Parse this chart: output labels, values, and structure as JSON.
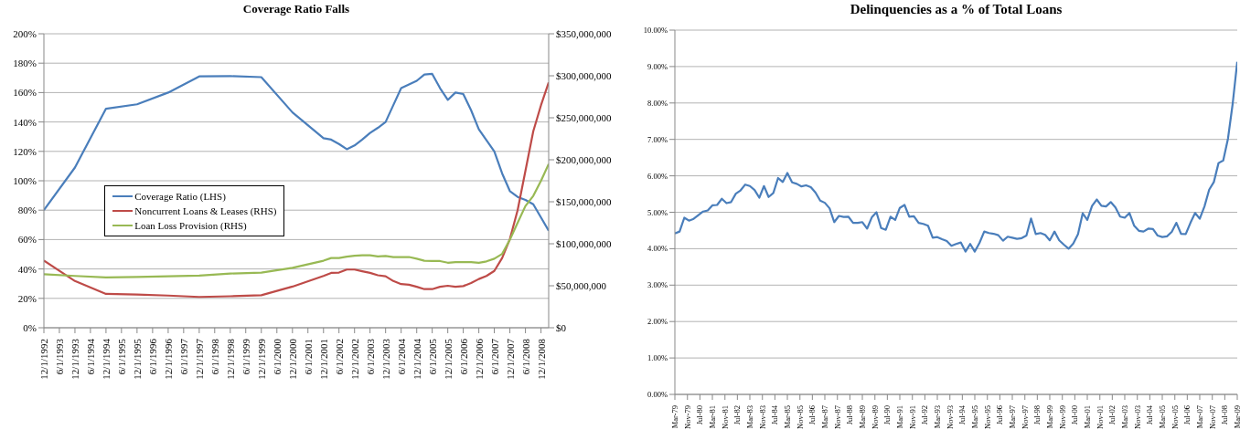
{
  "chart_data": [
    {
      "type": "line",
      "title": "Coverage Ratio Falls",
      "legend": "center left",
      "grid": "y",
      "marker": "none",
      "line_style": "solid",
      "x": [
        "1992-12",
        "1993-12",
        "1994-12",
        "1995-12",
        "1996-12",
        "1997-12",
        "1998-12",
        "1999-12",
        "2000-12",
        "2001-12",
        "2002-03",
        "2002-06",
        "2002-09",
        "2002-12",
        "2003-03",
        "2003-06",
        "2003-09",
        "2003-12",
        "2004-03",
        "2004-06",
        "2004-09",
        "2004-12",
        "2005-03",
        "2005-06",
        "2005-09",
        "2005-12",
        "2006-03",
        "2006-06",
        "2006-09",
        "2006-12",
        "2007-03",
        "2007-06",
        "2007-09",
        "2007-12",
        "2008-03",
        "2008-06",
        "2008-09",
        "2008-12",
        "2009-03"
      ],
      "xlim": [
        "1992-12-01",
        "2009-03-01"
      ],
      "xticks": [
        {
          "value": "1992-12-01",
          "label": "12/1/1992"
        },
        {
          "value": "1993-06-01",
          "label": "6/1/1993"
        },
        {
          "value": "1993-12-01",
          "label": "12/1/1993"
        },
        {
          "value": "1994-06-01",
          "label": "6/1/1994"
        },
        {
          "value": "1994-12-01",
          "label": "12/1/1994"
        },
        {
          "value": "1995-06-01",
          "label": "6/1/1995"
        },
        {
          "value": "1995-12-01",
          "label": "12/1/1995"
        },
        {
          "value": "1996-06-01",
          "label": "6/1/1996"
        },
        {
          "value": "1996-12-01",
          "label": "12/1/1996"
        },
        {
          "value": "1997-06-01",
          "label": "6/1/1997"
        },
        {
          "value": "1997-12-01",
          "label": "12/1/1997"
        },
        {
          "value": "1998-06-01",
          "label": "6/1/1998"
        },
        {
          "value": "1998-12-01",
          "label": "12/1/1998"
        },
        {
          "value": "1999-06-01",
          "label": "6/1/1999"
        },
        {
          "value": "1999-12-01",
          "label": "12/1/1999"
        },
        {
          "value": "2000-06-01",
          "label": "6/1/2000"
        },
        {
          "value": "2000-12-01",
          "label": "12/1/2000"
        },
        {
          "value": "2001-06-01",
          "label": "6/1/2001"
        },
        {
          "value": "2001-12-01",
          "label": "12/1/2001"
        },
        {
          "value": "2002-06-01",
          "label": "6/1/2002"
        },
        {
          "value": "2002-12-01",
          "label": "12/1/2002"
        },
        {
          "value": "2003-06-01",
          "label": "6/1/2003"
        },
        {
          "value": "2003-12-01",
          "label": "12/1/2003"
        },
        {
          "value": "2004-06-01",
          "label": "6/1/2004"
        },
        {
          "value": "2004-12-01",
          "label": "12/1/2004"
        },
        {
          "value": "2005-06-01",
          "label": "6/1/2005"
        },
        {
          "value": "2005-12-01",
          "label": "12/1/2005"
        },
        {
          "value": "2006-06-01",
          "label": "6/1/2006"
        },
        {
          "value": "2006-12-01",
          "label": "12/1/2006"
        },
        {
          "value": "2007-06-01",
          "label": "6/1/2007"
        },
        {
          "value": "2007-12-01",
          "label": "12/1/2007"
        },
        {
          "value": "2008-06-01",
          "label": "6/1/2008"
        },
        {
          "value": "2008-12-01",
          "label": "12/1/2008"
        }
      ],
      "ylim": [
        0,
        200
      ],
      "yticks": [
        {
          "value": 0,
          "label": "0%"
        },
        {
          "value": 20,
          "label": "20%"
        },
        {
          "value": 40,
          "label": "40%"
        },
        {
          "value": 60,
          "label": "60%"
        },
        {
          "value": 80,
          "label": "80%"
        },
        {
          "value": 100,
          "label": "100%"
        },
        {
          "value": 120,
          "label": "120%"
        },
        {
          "value": 140,
          "label": "140%"
        },
        {
          "value": 160,
          "label": "160%"
        },
        {
          "value": 180,
          "label": "180%"
        },
        {
          "value": 200,
          "label": "200%"
        }
      ],
      "y2lim": [
        0,
        350000000
      ],
      "y2ticks": [
        {
          "value": 0,
          "label": "$0"
        },
        {
          "value": 50000000,
          "label": "$50,000,000"
        },
        {
          "value": 100000000,
          "label": "$100,000,000"
        },
        {
          "value": 150000000,
          "label": "$150,000,000"
        },
        {
          "value": 200000000,
          "label": "$200,000,000"
        },
        {
          "value": 250000000,
          "label": "$250,000,000"
        },
        {
          "value": 300000000,
          "label": "$300,000,000"
        },
        {
          "value": 350000000,
          "label": "$350,000,000"
        }
      ],
      "series": [
        {
          "name": "Coverage Ratio (LHS)",
          "color": "#4a7ebb",
          "values": [
            80,
            109,
            149,
            152,
            160,
            171,
            171.2,
            170.5,
            146.5,
            129,
            128,
            125,
            121.5,
            124,
            128,
            132.5,
            136,
            140,
            151.5,
            163,
            165.5,
            168,
            172.3,
            172.7,
            163,
            155,
            160,
            159,
            148,
            135,
            127.5,
            120,
            105,
            93,
            89,
            87,
            84,
            75,
            66
          ]
        },
        {
          "name": "Noncurrent Loans & Leases (RHS)",
          "color": "#be4b48",
          "axis": "y2",
          "values": [
            80000000,
            55600000,
            40300000,
            39500000,
            38300000,
            36700000,
            37500000,
            38700000,
            49000000,
            61700000,
            65300000,
            65700000,
            69300000,
            69300000,
            67300000,
            65300000,
            62500000,
            61300000,
            55600000,
            52000000,
            51200000,
            48800000,
            46000000,
            46000000,
            48800000,
            50000000,
            48800000,
            49600000,
            53200000,
            58000000,
            61700000,
            67700000,
            83000000,
            105600000,
            140000000,
            187000000,
            234000000,
            265000000,
            292000000
          ]
        },
        {
          "name": "Loan Loss Provision (RHS)",
          "color": "#98b954",
          "axis": "y2",
          "values": [
            63700000,
            61700000,
            60000000,
            60400000,
            61300000,
            62000000,
            64500000,
            65700000,
            71300000,
            79800000,
            83000000,
            83000000,
            84600000,
            85800000,
            86200000,
            86200000,
            85000000,
            85400000,
            84200000,
            84200000,
            84200000,
            82200000,
            79800000,
            79400000,
            79400000,
            77400000,
            78200000,
            78200000,
            78200000,
            77400000,
            79000000,
            82200000,
            87900000,
            104800000,
            125000000,
            145000000,
            157000000,
            175000000,
            195000000
          ]
        }
      ]
    },
    {
      "type": "line",
      "title": "Delinquencies as a % of Total Loans",
      "legend": false,
      "grid": "y",
      "marker": "none",
      "line_style": "solid",
      "x": [
        "1979-03",
        "1979-06",
        "1979-09",
        "1979-12",
        "1980-03",
        "1980-06",
        "1980-09",
        "1980-12",
        "1981-03",
        "1981-06",
        "1981-09",
        "1981-12",
        "1982-03",
        "1982-06",
        "1982-09",
        "1982-12",
        "1983-03",
        "1983-06",
        "1983-09",
        "1983-12",
        "1984-03",
        "1984-06",
        "1984-09",
        "1984-12",
        "1985-03",
        "1985-06",
        "1985-09",
        "1985-12",
        "1986-03",
        "1986-06",
        "1986-09",
        "1986-12",
        "1987-03",
        "1987-06",
        "1987-09",
        "1987-12",
        "1988-03",
        "1988-06",
        "1988-09",
        "1988-12",
        "1989-03",
        "1989-06",
        "1989-09",
        "1989-12",
        "1990-03",
        "1990-06",
        "1990-09",
        "1990-12",
        "1991-03",
        "1991-06",
        "1991-09",
        "1991-12",
        "1992-03",
        "1992-06",
        "1992-09",
        "1992-12",
        "1993-03",
        "1993-06",
        "1993-09",
        "1993-12",
        "1994-03",
        "1994-06",
        "1994-09",
        "1994-12",
        "1995-03",
        "1995-06",
        "1995-09",
        "1995-12",
        "1996-03",
        "1996-06",
        "1996-09",
        "1996-12",
        "1997-03",
        "1997-06",
        "1997-09",
        "1997-12",
        "1998-03",
        "1998-06",
        "1998-09",
        "1998-12",
        "1999-03",
        "1999-06",
        "1999-09",
        "1999-12",
        "2000-03",
        "2000-06",
        "2000-09",
        "2000-12",
        "2001-03",
        "2001-06",
        "2001-09",
        "2001-12",
        "2002-03",
        "2002-06",
        "2002-09",
        "2002-12",
        "2003-03",
        "2003-06",
        "2003-09",
        "2003-12",
        "2004-03",
        "2004-06",
        "2004-09",
        "2004-12",
        "2005-03",
        "2005-06",
        "2005-09",
        "2005-12",
        "2006-03",
        "2006-06",
        "2006-09",
        "2006-12",
        "2007-03",
        "2007-06",
        "2007-09",
        "2007-12",
        "2008-03",
        "2008-06",
        "2008-09",
        "2008-12",
        "2009-03"
      ],
      "xlim": [
        "1979-03",
        "2009-03"
      ],
      "xticks": [
        {
          "value": "1979-03",
          "label": "Mar-79"
        },
        {
          "value": "1979-11",
          "label": "Nov-79"
        },
        {
          "value": "1980-07",
          "label": "Jul-80"
        },
        {
          "value": "1981-03",
          "label": "Mar-81"
        },
        {
          "value": "1981-11",
          "label": "Nov-81"
        },
        {
          "value": "1982-07",
          "label": "Jul-82"
        },
        {
          "value": "1983-03",
          "label": "Mar-83"
        },
        {
          "value": "1983-11",
          "label": "Nov-83"
        },
        {
          "value": "1984-07",
          "label": "Jul-84"
        },
        {
          "value": "1985-03",
          "label": "Mar-85"
        },
        {
          "value": "1985-11",
          "label": "Nov-85"
        },
        {
          "value": "1986-07",
          "label": "Jul-86"
        },
        {
          "value": "1987-03",
          "label": "Mar-87"
        },
        {
          "value": "1987-11",
          "label": "Nov-87"
        },
        {
          "value": "1988-07",
          "label": "Jul-88"
        },
        {
          "value": "1989-03",
          "label": "Mar-89"
        },
        {
          "value": "1989-11",
          "label": "Nov-89"
        },
        {
          "value": "1990-07",
          "label": "Jul-90"
        },
        {
          "value": "1991-03",
          "label": "Mar-91"
        },
        {
          "value": "1991-11",
          "label": "Nov-91"
        },
        {
          "value": "1992-07",
          "label": "Jul-92"
        },
        {
          "value": "1993-03",
          "label": "Mar-93"
        },
        {
          "value": "1993-11",
          "label": "Nov-93"
        },
        {
          "value": "1994-07",
          "label": "Jul-94"
        },
        {
          "value": "1995-03",
          "label": "Mar-95"
        },
        {
          "value": "1995-11",
          "label": "Nov-95"
        },
        {
          "value": "1996-07",
          "label": "Jul-96"
        },
        {
          "value": "1997-03",
          "label": "Mar-97"
        },
        {
          "value": "1997-11",
          "label": "Nov-97"
        },
        {
          "value": "1998-07",
          "label": "Jul-98"
        },
        {
          "value": "1999-03",
          "label": "Mar-99"
        },
        {
          "value": "1999-11",
          "label": "Nov-99"
        },
        {
          "value": "2000-07",
          "label": "Jul-00"
        },
        {
          "value": "2001-03",
          "label": "Mar-01"
        },
        {
          "value": "2001-11",
          "label": "Nov-01"
        },
        {
          "value": "2002-07",
          "label": "Jul-02"
        },
        {
          "value": "2003-03",
          "label": "Mar-03"
        },
        {
          "value": "2003-11",
          "label": "Nov-03"
        },
        {
          "value": "2004-07",
          "label": "Jul-04"
        },
        {
          "value": "2005-03",
          "label": "Mar-05"
        },
        {
          "value": "2005-11",
          "label": "Nov-05"
        },
        {
          "value": "2006-07",
          "label": "Jul-06"
        },
        {
          "value": "2007-03",
          "label": "Mar-07"
        },
        {
          "value": "2007-11",
          "label": "Nov-07"
        },
        {
          "value": "2008-07",
          "label": "Jul-08"
        },
        {
          "value": "2009-03",
          "label": "Mar-09"
        }
      ],
      "ylim": [
        0,
        10
      ],
      "yticks": [
        {
          "value": 0,
          "label": "0.00%"
        },
        {
          "value": 1,
          "label": "1.00%"
        },
        {
          "value": 2,
          "label": "2.00%"
        },
        {
          "value": 3,
          "label": "3.00%"
        },
        {
          "value": 4,
          "label": "4.00%"
        },
        {
          "value": 5,
          "label": "5.00%"
        },
        {
          "value": 6,
          "label": "6.00%"
        },
        {
          "value": 7,
          "label": "7.00%"
        },
        {
          "value": 8,
          "label": "8.00%"
        },
        {
          "value": 9,
          "label": "9.00%"
        },
        {
          "value": 10,
          "label": "10.00%"
        }
      ],
      "series": [
        {
          "color": "#4a7ebb",
          "values": [
            4.42,
            4.47,
            4.85,
            4.77,
            4.82,
            4.92,
            5.02,
            5.05,
            5.19,
            5.2,
            5.37,
            5.25,
            5.28,
            5.51,
            5.6,
            5.76,
            5.72,
            5.61,
            5.4,
            5.72,
            5.42,
            5.53,
            5.94,
            5.83,
            6.08,
            5.82,
            5.78,
            5.71,
            5.74,
            5.69,
            5.54,
            5.32,
            5.26,
            5.11,
            4.73,
            4.9,
            4.87,
            4.88,
            4.71,
            4.71,
            4.73,
            4.55,
            4.86,
            5.0,
            4.57,
            4.52,
            4.88,
            4.79,
            5.12,
            5.2,
            4.88,
            4.89,
            4.71,
            4.68,
            4.63,
            4.3,
            4.32,
            4.26,
            4.21,
            4.08,
            4.13,
            4.17,
            3.92,
            4.13,
            3.92,
            4.16,
            4.47,
            4.43,
            4.41,
            4.37,
            4.22,
            4.33,
            4.3,
            4.27,
            4.29,
            4.36,
            4.83,
            4.4,
            4.43,
            4.38,
            4.23,
            4.47,
            4.23,
            4.11,
            4.0,
            4.14,
            4.4,
            4.97,
            4.79,
            5.17,
            5.35,
            5.18,
            5.16,
            5.28,
            5.13,
            4.88,
            4.85,
            4.98,
            4.63,
            4.49,
            4.47,
            4.55,
            4.54,
            4.36,
            4.32,
            4.34,
            4.46,
            4.71,
            4.41,
            4.4,
            4.71,
            4.98,
            4.82,
            5.16,
            5.62,
            5.83,
            6.35,
            6.42,
            7.02,
            7.97,
            9.13
          ]
        }
      ]
    }
  ]
}
